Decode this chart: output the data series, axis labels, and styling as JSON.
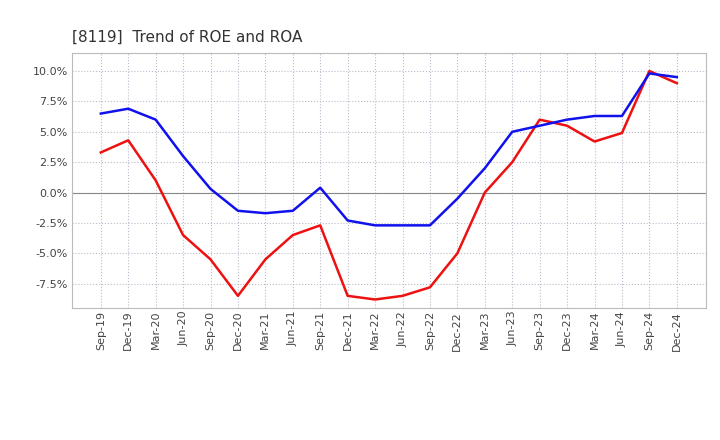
{
  "title": "[8119]  Trend of ROE and ROA",
  "x_labels": [
    "Sep-19",
    "Dec-19",
    "Mar-20",
    "Jun-20",
    "Sep-20",
    "Dec-20",
    "Mar-21",
    "Jun-21",
    "Sep-21",
    "Dec-21",
    "Mar-22",
    "Jun-22",
    "Sep-22",
    "Dec-22",
    "Mar-23",
    "Jun-23",
    "Sep-23",
    "Dec-23",
    "Mar-24",
    "Jun-24",
    "Sep-24",
    "Dec-24"
  ],
  "ROE": [
    3.3,
    4.3,
    1.0,
    -3.5,
    -5.5,
    -8.5,
    -5.5,
    -3.5,
    -2.7,
    -8.5,
    -8.8,
    -8.5,
    -7.8,
    -5.0,
    0.0,
    2.5,
    6.0,
    5.5,
    4.2,
    4.9,
    10.0,
    9.0
  ],
  "ROA": [
    6.5,
    6.9,
    6.0,
    3.0,
    0.3,
    -1.5,
    -1.7,
    -1.5,
    0.4,
    -2.3,
    -2.7,
    -2.7,
    -2.7,
    -0.5,
    2.0,
    5.0,
    5.5,
    6.0,
    6.3,
    6.3,
    9.8,
    9.5
  ],
  "roe_color": "#EE1111",
  "roa_color": "#1111EE",
  "ylim": [
    -9.5,
    11.5
  ],
  "yticks": [
    -7.5,
    -5.0,
    -2.5,
    0.0,
    2.5,
    5.0,
    7.5,
    10.0
  ],
  "background_color": "#FFFFFF",
  "plot_bg_color": "#FFFFFF",
  "grid_color": "#BBBBCC",
  "title_fontsize": 11,
  "axis_fontsize": 8,
  "legend_fontsize": 9,
  "line_width": 1.8
}
